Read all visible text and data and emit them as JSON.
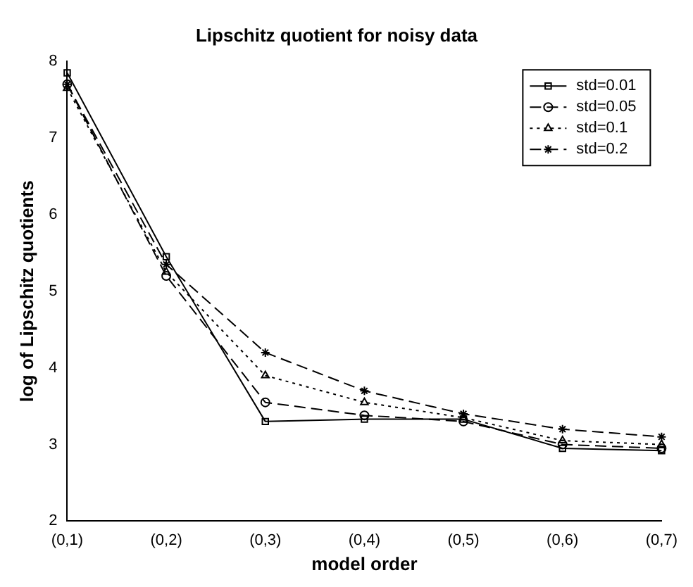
{
  "chart_data": {
    "type": "line",
    "title": "Lipschitz quotient for noisy data",
    "xlabel": "model order",
    "ylabel": "log of Lipschitz quotients",
    "categories": [
      "(0,1)",
      "(0,2)",
      "(0,3)",
      "(0,4)",
      "(0,5)",
      "(0,6)",
      "(0,7)"
    ],
    "series": [
      {
        "name": "std=0.01",
        "color": "#000000",
        "marker": "square",
        "line_style": "solid",
        "values": [
          7.85,
          5.45,
          3.3,
          3.33,
          3.33,
          2.95,
          2.92
        ]
      },
      {
        "name": "std=0.05",
        "color": "#000000",
        "marker": "circle",
        "line_style": "dashed",
        "values": [
          7.7,
          5.2,
          3.55,
          3.38,
          3.3,
          3.0,
          2.95
        ]
      },
      {
        "name": "std=0.1",
        "color": "#000000",
        "marker": "triangle",
        "line_style": "dotted",
        "values": [
          7.65,
          5.25,
          3.9,
          3.55,
          3.35,
          3.05,
          3.0
        ]
      },
      {
        "name": "std=0.2",
        "color": "#000000",
        "marker": "cross",
        "line_style": "dashed",
        "values": [
          7.7,
          5.35,
          4.2,
          3.7,
          3.4,
          3.2,
          3.1
        ]
      }
    ],
    "ylim": [
      2,
      8
    ],
    "yticks": [
      2,
      3,
      4,
      5,
      6,
      7,
      8
    ],
    "grid": false,
    "legend": "top right"
  }
}
